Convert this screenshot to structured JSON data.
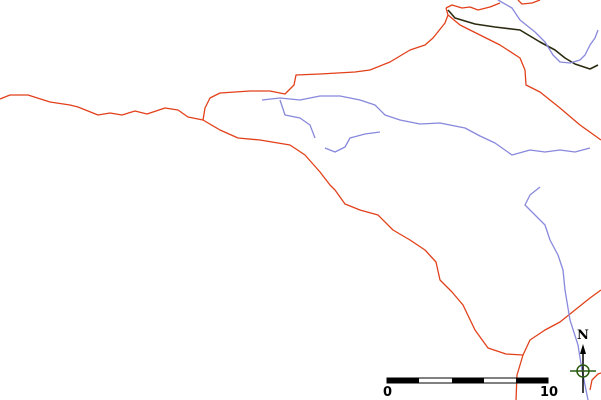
{
  "map": {
    "colors": {
      "road_major": "#e2401a",
      "road_minor": "#8888dd",
      "rail": "#2a2a10",
      "highlight": "#6a9a20"
    },
    "scale_bar": {
      "start_label": "0",
      "end_label": "10"
    },
    "compass": {
      "north_label": "N"
    }
  }
}
